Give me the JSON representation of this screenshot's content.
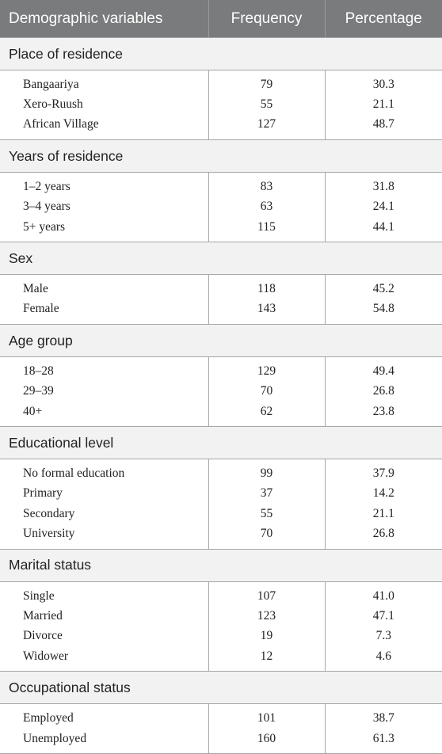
{
  "table": {
    "headers": [
      "Demographic variables",
      "Frequency",
      "Percentage"
    ],
    "groups": [
      {
        "title": "Place of residence",
        "rows": [
          {
            "label": "Bangaariya",
            "frequency": "79",
            "percentage": "30.3"
          },
          {
            "label": "Xero-Ruush",
            "frequency": "55",
            "percentage": "21.1"
          },
          {
            "label": "African Village",
            "frequency": "127",
            "percentage": "48.7"
          }
        ]
      },
      {
        "title": "Years of residence",
        "rows": [
          {
            "label": "1–2 years",
            "frequency": "83",
            "percentage": "31.8"
          },
          {
            "label": "3–4 years",
            "frequency": "63",
            "percentage": "24.1"
          },
          {
            "label": "5+ years",
            "frequency": "115",
            "percentage": "44.1"
          }
        ]
      },
      {
        "title": "Sex",
        "rows": [
          {
            "label": "Male",
            "frequency": "118",
            "percentage": "45.2"
          },
          {
            "label": "Female",
            "frequency": "143",
            "percentage": "54.8"
          }
        ]
      },
      {
        "title": "Age group",
        "rows": [
          {
            "label": "18–28",
            "frequency": "129",
            "percentage": "49.4"
          },
          {
            "label": "29–39",
            "frequency": "70",
            "percentage": "26.8"
          },
          {
            "label": "40+",
            "frequency": "62",
            "percentage": "23.8"
          }
        ]
      },
      {
        "title": "Educational level",
        "rows": [
          {
            "label": "No formal education",
            "frequency": "99",
            "percentage": "37.9"
          },
          {
            "label": "Primary",
            "frequency": "37",
            "percentage": "14.2"
          },
          {
            "label": "Secondary",
            "frequency": "55",
            "percentage": "21.1"
          },
          {
            "label": "University",
            "frequency": "70",
            "percentage": "26.8"
          }
        ]
      },
      {
        "title": "Marital status",
        "rows": [
          {
            "label": "Single",
            "frequency": "107",
            "percentage": "41.0"
          },
          {
            "label": "Married",
            "frequency": "123",
            "percentage": "47.1"
          },
          {
            "label": "Divorce",
            "frequency": "19",
            "percentage": "7.3"
          },
          {
            "label": "Widower",
            "frequency": "12",
            "percentage": "4.6"
          }
        ]
      },
      {
        "title": "Occupational status",
        "rows": [
          {
            "label": "Employed",
            "frequency": "101",
            "percentage": "38.7"
          },
          {
            "label": "Unemployed",
            "frequency": "160",
            "percentage": "61.3"
          }
        ]
      }
    ]
  }
}
